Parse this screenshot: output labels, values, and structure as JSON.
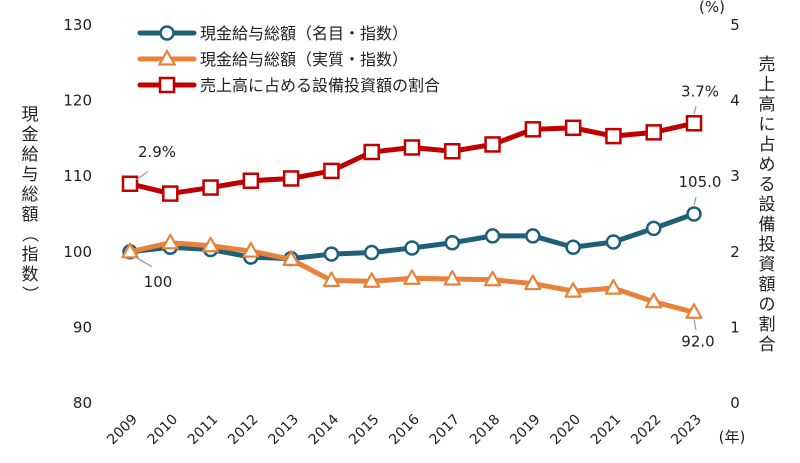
{
  "chart_data": {
    "type": "line",
    "title": "",
    "x": [
      "2009",
      "2010",
      "2011",
      "2012",
      "2013",
      "2014",
      "2015",
      "2016",
      "2017",
      "2018",
      "2019",
      "2020",
      "2021",
      "2022",
      "2023"
    ],
    "x_unit": "(年)",
    "y_left": {
      "label": "現金給与総額（指数）",
      "ylim": [
        80,
        130
      ],
      "ticks": [
        80,
        90,
        100,
        110,
        120,
        130
      ]
    },
    "y_right": {
      "label": "売上高に占める設備投資額の割合",
      "unit": "(%)",
      "ylim": [
        0,
        5
      ],
      "ticks": [
        0,
        1,
        2,
        3,
        4,
        5
      ]
    },
    "series": [
      {
        "name": "現金給与総額（名目・指数）",
        "axis": "left",
        "color": "#1f5f7a",
        "marker": "circle",
        "values": [
          100,
          100.6,
          100.3,
          99.3,
          99.1,
          99.7,
          99.9,
          100.5,
          101.2,
          102.1,
          102.1,
          100.6,
          101.3,
          103.1,
          105.0
        ]
      },
      {
        "name": "現金給与総額（実質・指数）",
        "axis": "left",
        "color": "#e8823a",
        "marker": "triangle",
        "values": [
          100,
          101.2,
          100.8,
          100.1,
          99.0,
          96.2,
          96.1,
          96.5,
          96.4,
          96.3,
          95.8,
          94.8,
          95.2,
          93.4,
          92.0
        ]
      },
      {
        "name": "売上高に占める設備投資額の割合",
        "axis": "right",
        "color": "#c00000",
        "marker": "square",
        "values": [
          2.9,
          2.77,
          2.85,
          2.94,
          2.97,
          3.07,
          3.32,
          3.38,
          3.33,
          3.42,
          3.62,
          3.64,
          3.53,
          3.58,
          3.7
        ]
      }
    ],
    "annotations": [
      {
        "text": "2.9%",
        "series": 2,
        "index": 0
      },
      {
        "text": "3.7%",
        "series": 2,
        "index": 14
      },
      {
        "text": "100",
        "series": 0,
        "index": 0
      },
      {
        "text": "105.0",
        "series": 0,
        "index": 14
      },
      {
        "text": "92.0",
        "series": 1,
        "index": 14
      }
    ],
    "grid": false,
    "legend_position": "top-left"
  }
}
